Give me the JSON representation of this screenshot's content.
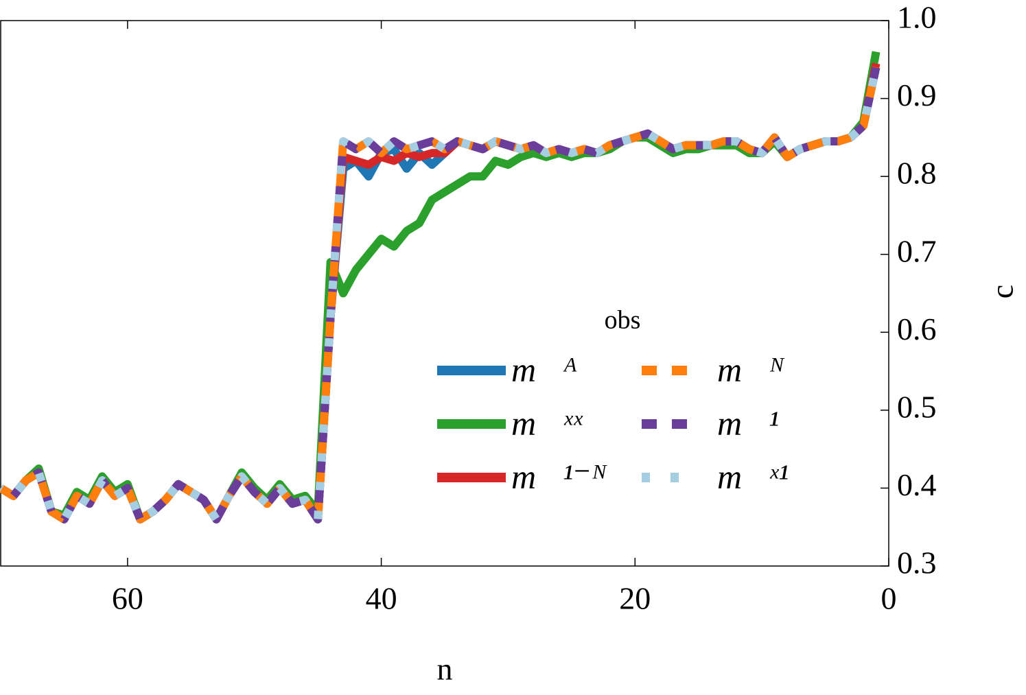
{
  "chart_data": {
    "type": "line",
    "xlabel": "n",
    "ylabel": "c",
    "legend_title": "obs",
    "xlim": [
      70,
      0
    ],
    "ylim": [
      0.3,
      1.0
    ],
    "xticks": [
      60,
      40,
      20,
      0
    ],
    "yticks": [
      0.3,
      0.4,
      0.5,
      0.6,
      0.7,
      0.8,
      0.9,
      {
        "value": 1.0,
        "label": "1.0"
      }
    ],
    "x": [
      70,
      69,
      68,
      67,
      66,
      65,
      64,
      63,
      62,
      61,
      60,
      59,
      58,
      57,
      56,
      55,
      54,
      53,
      52,
      51,
      50,
      49,
      48,
      47,
      46,
      45,
      44,
      43,
      42,
      41,
      40,
      39,
      38,
      37,
      36,
      35,
      34,
      33,
      32,
      31,
      30,
      29,
      28,
      27,
      26,
      25,
      24,
      23,
      22,
      21,
      20,
      19,
      18,
      17,
      16,
      15,
      14,
      13,
      12,
      11,
      10,
      9,
      8,
      7,
      6,
      5,
      4,
      3,
      2,
      1
    ],
    "series": [
      {
        "name": "m⃗ᴬ",
        "color": "#1f77b4",
        "linestyle": "solid",
        "values": [
          0.4,
          0.39,
          0.41,
          0.42,
          0.37,
          0.36,
          0.39,
          0.38,
          0.41,
          0.39,
          0.4,
          0.36,
          0.37,
          0.385,
          0.405,
          0.395,
          0.385,
          0.36,
          0.39,
          0.415,
          0.395,
          0.38,
          0.4,
          0.38,
          0.385,
          0.36,
          0.62,
          0.81,
          0.82,
          0.8,
          0.83,
          0.835,
          0.81,
          0.83,
          0.815,
          0.83,
          0.845,
          0.84,
          0.835,
          0.845,
          0.84,
          0.835,
          0.84,
          0.83,
          0.835,
          0.83,
          0.835,
          0.83,
          0.84,
          0.845,
          0.85,
          0.855,
          0.845,
          0.835,
          0.84,
          0.84,
          0.84,
          0.845,
          0.845,
          0.835,
          0.83,
          0.85,
          0.825,
          0.835,
          0.84,
          0.845,
          0.845,
          0.85,
          0.865,
          0.94
        ]
      },
      {
        "name": "m⃗ˣˣ",
        "color": "#2ca02c",
        "linestyle": "solid",
        "values": [
          0.4,
          0.39,
          0.41,
          0.425,
          0.37,
          0.365,
          0.395,
          0.385,
          0.415,
          0.395,
          0.405,
          0.36,
          0.37,
          0.385,
          0.405,
          0.395,
          0.385,
          0.36,
          0.39,
          0.42,
          0.4,
          0.385,
          0.405,
          0.385,
          0.39,
          0.37,
          0.69,
          0.65,
          0.68,
          0.7,
          0.72,
          0.71,
          0.73,
          0.74,
          0.77,
          0.78,
          0.79,
          0.8,
          0.8,
          0.82,
          0.815,
          0.825,
          0.83,
          0.825,
          0.83,
          0.825,
          0.83,
          0.83,
          0.835,
          0.845,
          0.85,
          0.85,
          0.84,
          0.83,
          0.835,
          0.835,
          0.84,
          0.84,
          0.84,
          0.83,
          0.83,
          0.845,
          0.825,
          0.835,
          0.84,
          0.845,
          0.845,
          0.85,
          0.87,
          0.96
        ]
      },
      {
        "name": "m⃗¹⁻ᴺ",
        "color": "#d62728",
        "linestyle": "solid",
        "values": [
          0.4,
          0.39,
          0.41,
          0.42,
          0.37,
          0.36,
          0.39,
          0.38,
          0.41,
          0.39,
          0.4,
          0.36,
          0.37,
          0.385,
          0.405,
          0.395,
          0.385,
          0.36,
          0.39,
          0.415,
          0.395,
          0.38,
          0.4,
          0.38,
          0.385,
          0.36,
          0.62,
          0.825,
          0.82,
          0.815,
          0.825,
          0.82,
          0.83,
          0.825,
          0.83,
          0.83,
          0.845,
          0.84,
          0.835,
          0.845,
          0.84,
          0.835,
          0.84,
          0.83,
          0.835,
          0.83,
          0.835,
          0.83,
          0.84,
          0.845,
          0.85,
          0.855,
          0.845,
          0.835,
          0.84,
          0.84,
          0.84,
          0.845,
          0.845,
          0.835,
          0.83,
          0.85,
          0.825,
          0.835,
          0.84,
          0.845,
          0.845,
          0.85,
          0.865,
          0.945
        ]
      },
      {
        "name": "m⃗ᴺ",
        "color": "#ff7f0e",
        "linestyle": "dashed",
        "values": [
          0.4,
          0.39,
          0.41,
          0.42,
          0.37,
          0.36,
          0.39,
          0.38,
          0.41,
          0.39,
          0.4,
          0.36,
          0.37,
          0.385,
          0.405,
          0.395,
          0.385,
          0.36,
          0.39,
          0.415,
          0.395,
          0.38,
          0.4,
          0.38,
          0.385,
          0.36,
          0.62,
          0.845,
          0.835,
          0.845,
          0.83,
          0.845,
          0.835,
          0.84,
          0.845,
          0.835,
          0.845,
          0.84,
          0.835,
          0.845,
          0.84,
          0.835,
          0.84,
          0.83,
          0.835,
          0.83,
          0.835,
          0.83,
          0.84,
          0.845,
          0.85,
          0.855,
          0.845,
          0.835,
          0.84,
          0.84,
          0.84,
          0.845,
          0.845,
          0.835,
          0.83,
          0.85,
          0.825,
          0.835,
          0.84,
          0.845,
          0.845,
          0.85,
          0.865,
          0.94
        ]
      },
      {
        "name": "m⃗¹",
        "color": "#6a3d9a",
        "linestyle": "dashed",
        "values": [
          0.4,
          0.39,
          0.41,
          0.42,
          0.37,
          0.36,
          0.39,
          0.38,
          0.41,
          0.39,
          0.4,
          0.36,
          0.37,
          0.385,
          0.405,
          0.395,
          0.385,
          0.36,
          0.39,
          0.415,
          0.395,
          0.38,
          0.4,
          0.38,
          0.385,
          0.36,
          0.62,
          0.845,
          0.835,
          0.845,
          0.83,
          0.845,
          0.835,
          0.84,
          0.845,
          0.835,
          0.845,
          0.84,
          0.835,
          0.845,
          0.84,
          0.835,
          0.84,
          0.83,
          0.835,
          0.83,
          0.835,
          0.83,
          0.84,
          0.845,
          0.85,
          0.855,
          0.845,
          0.835,
          0.84,
          0.84,
          0.84,
          0.845,
          0.845,
          0.835,
          0.83,
          0.85,
          0.825,
          0.835,
          0.84,
          0.845,
          0.845,
          0.85,
          0.865,
          0.94
        ]
      },
      {
        "name": "m⃗ˣ¹",
        "color": "#a6cee3",
        "linestyle": "dotted",
        "values": [
          0.4,
          0.39,
          0.41,
          0.42,
          0.37,
          0.36,
          0.39,
          0.38,
          0.41,
          0.39,
          0.4,
          0.36,
          0.37,
          0.385,
          0.405,
          0.395,
          0.385,
          0.36,
          0.39,
          0.415,
          0.395,
          0.38,
          0.4,
          0.38,
          0.385,
          0.36,
          0.62,
          0.845,
          0.835,
          0.845,
          0.83,
          0.845,
          0.835,
          0.84,
          0.845,
          0.835,
          0.845,
          0.84,
          0.835,
          0.845,
          0.84,
          0.835,
          0.84,
          0.83,
          0.835,
          0.83,
          0.835,
          0.83,
          0.84,
          0.845,
          0.85,
          0.855,
          0.845,
          0.835,
          0.84,
          0.84,
          0.84,
          0.845,
          0.845,
          0.835,
          0.83,
          0.85,
          0.825,
          0.835,
          0.84,
          0.845,
          0.845,
          0.85,
          0.865,
          0.94
        ]
      }
    ]
  }
}
